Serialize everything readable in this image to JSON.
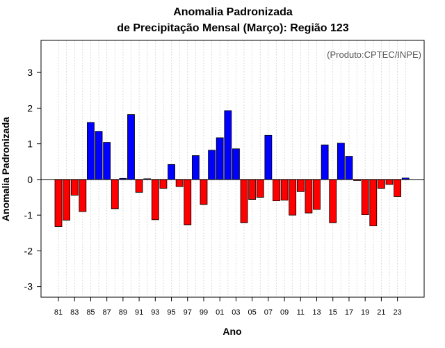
{
  "chart_data": {
    "type": "bar",
    "title": "Anomalia Padronizada",
    "subtitle": "de Precipitação Mensal (Março): Região 123",
    "xlabel": "Ano",
    "ylabel": "Anomalia Padronizada",
    "annotation": "(Produto:CPTEC/INPE)",
    "ylim": [
      -3.3,
      3.9
    ],
    "yticks": [
      -3,
      -2,
      -1,
      0,
      1,
      2,
      3
    ],
    "grid": "vertical dashed",
    "positive_color": "#0000ff",
    "negative_color": "#ff0000",
    "categories": [
      "81",
      "82",
      "83",
      "84",
      "85",
      "86",
      "87",
      "88",
      "89",
      "90",
      "91",
      "92",
      "93",
      "94",
      "95",
      "96",
      "97",
      "98",
      "99",
      "00",
      "01",
      "02",
      "03",
      "04",
      "05",
      "06",
      "07",
      "08",
      "09",
      "10",
      "11",
      "12",
      "13",
      "14",
      "15",
      "16",
      "17",
      "18",
      "19",
      "20",
      "21",
      "22",
      "23",
      "24"
    ],
    "xtick_labels": [
      "81",
      "83",
      "85",
      "87",
      "89",
      "91",
      "93",
      "95",
      "97",
      "99",
      "01",
      "03",
      "05",
      "07",
      "09",
      "11",
      "13",
      "15",
      "17",
      "19",
      "21",
      "23"
    ],
    "values": [
      -1.32,
      -1.14,
      -0.44,
      -0.9,
      1.6,
      1.35,
      1.04,
      -0.82,
      0.03,
      1.82,
      -0.36,
      0.02,
      -1.13,
      -0.25,
      0.42,
      -0.2,
      -1.27,
      0.67,
      -0.7,
      0.82,
      1.17,
      1.93,
      0.86,
      -1.21,
      -0.56,
      -0.5,
      1.24,
      -0.6,
      -0.58,
      -1.0,
      -0.34,
      -0.94,
      -0.84,
      0.97,
      -1.21,
      1.02,
      0.65,
      -0.03,
      -0.99,
      -1.3,
      -0.25,
      -0.14,
      -0.48,
      0.04
    ]
  }
}
